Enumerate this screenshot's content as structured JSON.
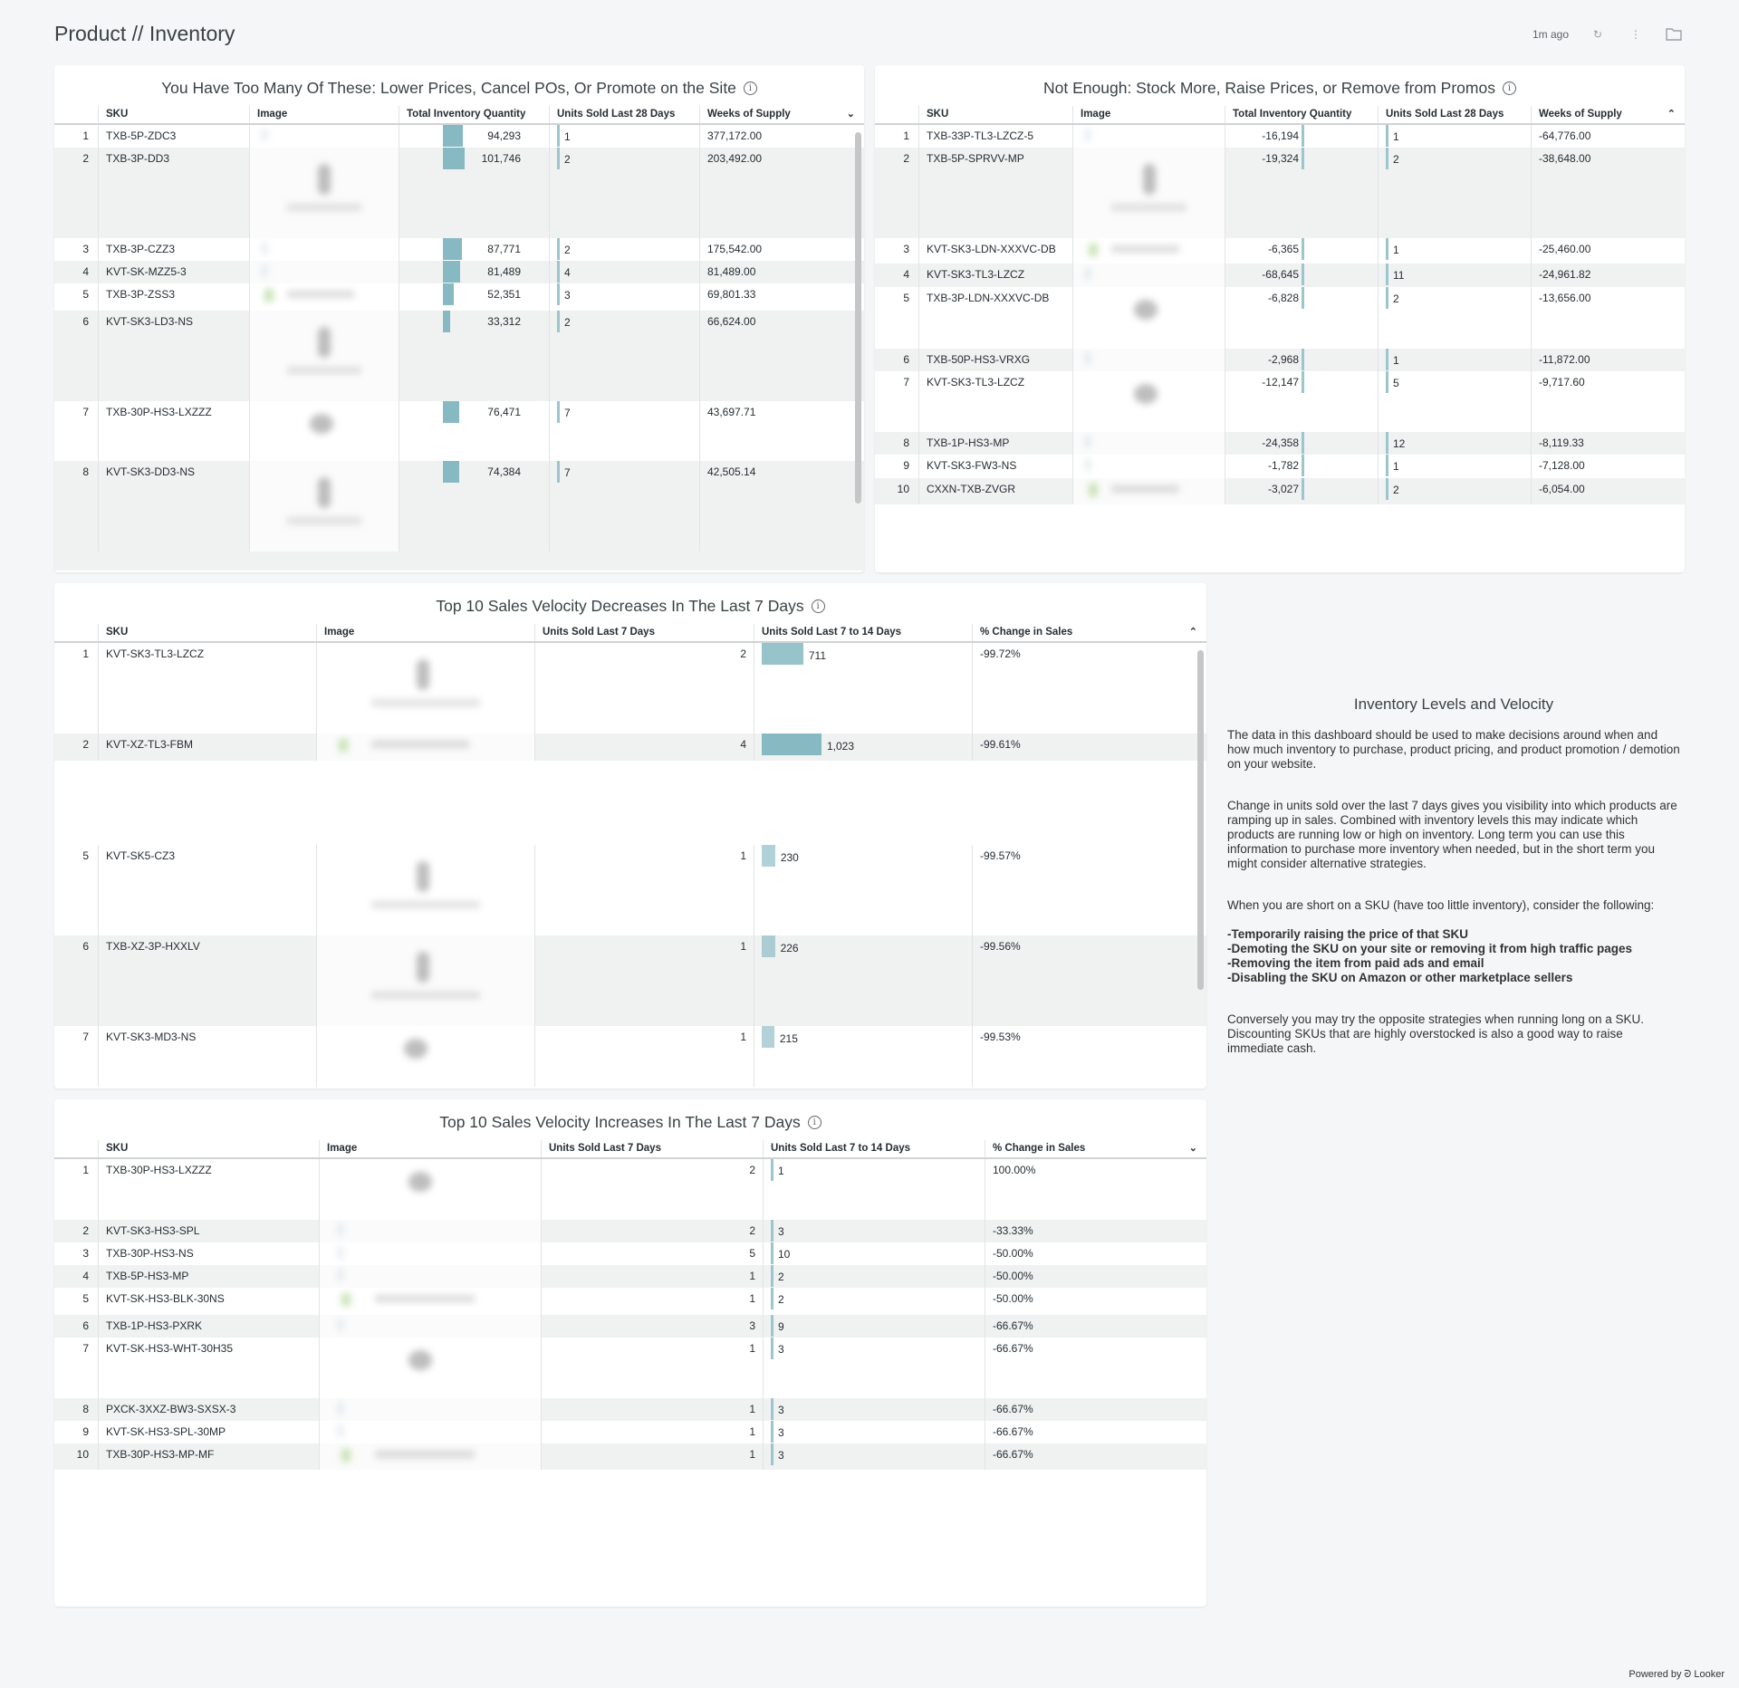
{
  "header": {
    "title": "Product // Inventory",
    "updated": "1m ago",
    "icons": [
      "refresh-icon",
      "kebab-menu-icon",
      "folder-icon"
    ]
  },
  "colors": {
    "bar": "#87b9c3",
    "stripe": "#f0f1f1"
  },
  "tables": [
    {
      "title": "You Have Too Many Of These: Lower Prices, Cancel POs, Or Promote on the Site",
      "sort": "chevron-down",
      "columns": [
        "",
        "SKU",
        "Image",
        "Total Inventory Quantity",
        "Units Sold Last 28 Days",
        "Weeks of Supply"
      ],
      "rows": [
        {
          "rank": "1",
          "sku": "TXB-5P-ZDC3",
          "img": "thumb",
          "a": "94,293",
          "b": "1",
          "c": "377,172.00"
        },
        {
          "rank": "2",
          "sku": "TXB-3P-DD3",
          "img": "figure",
          "a": "101,746",
          "b": "2",
          "c": "203,492.00"
        },
        {
          "rank": "3",
          "sku": "TXB-3P-CZZ3",
          "img": "thumb",
          "a": "87,771",
          "b": "2",
          "c": "175,542.00"
        },
        {
          "rank": "4",
          "sku": "KVT-SK-MZZ5-3",
          "img": "thumb",
          "a": "81,489",
          "b": "4",
          "c": "81,489.00"
        },
        {
          "rank": "5",
          "sku": "TXB-3P-ZSS3",
          "img": "logo",
          "a": "52,351",
          "b": "3",
          "c": "69,801.33"
        },
        {
          "rank": "6",
          "sku": "KVT-SK3-LD3-NS",
          "img": "figure",
          "a": "33,312",
          "b": "2",
          "c": "66,624.00"
        },
        {
          "rank": "7",
          "sku": "TXB-30P-HS3-LXZZZ",
          "img": "round",
          "a": "76,471",
          "b": "7",
          "c": "43,697.71"
        },
        {
          "rank": "8",
          "sku": "KVT-SK3-DD3-NS",
          "img": "figure",
          "a": "74,384",
          "b": "7",
          "c": "42,505.14"
        }
      ]
    },
    {
      "title": "Not Enough: Stock More, Raise Prices, or Remove from Promos",
      "sort": "chevron-up",
      "columns": [
        "",
        "SKU",
        "Image",
        "Total Inventory Quantity",
        "Units Sold Last 28 Days",
        "Weeks of Supply"
      ],
      "rows": [
        {
          "rank": "1",
          "sku": "TXB-33P-TL3-LZCZ-5",
          "img": "thumb",
          "a": "-16,194",
          "b": "1",
          "c": "-64,776.00"
        },
        {
          "rank": "2",
          "sku": "TXB-5P-SPRVV-MP",
          "img": "figure",
          "a": "-19,324",
          "b": "2",
          "c": "-38,648.00"
        },
        {
          "rank": "3",
          "sku": "KVT-SK3-LDN-XXXVC-DB",
          "img": "logo",
          "a": "-6,365",
          "b": "1",
          "c": "-25,460.00"
        },
        {
          "rank": "4",
          "sku": "KVT-SK3-TL3-LZCZ",
          "img": "thumb",
          "a": "-68,645",
          "b": "11",
          "c": "-24,961.82"
        },
        {
          "rank": "5",
          "sku": "TXB-3P-LDN-XXXVC-DB",
          "img": "round",
          "a": "-6,828",
          "b": "2",
          "c": "-13,656.00"
        },
        {
          "rank": "6",
          "sku": "TXB-50P-HS3-VRXG",
          "img": "thumb",
          "a": "-2,968",
          "b": "1",
          "c": "-11,872.00"
        },
        {
          "rank": "7",
          "sku": "KVT-SK3-TL3-LZCZ",
          "img": "round",
          "a": "-12,147",
          "b": "5",
          "c": "-9,717.60"
        },
        {
          "rank": "8",
          "sku": "TXB-1P-HS3-MP",
          "img": "thumb",
          "a": "-24,358",
          "b": "12",
          "c": "-8,119.33"
        },
        {
          "rank": "9",
          "sku": "KVT-SK3-FW3-NS",
          "img": "thumb",
          "a": "-1,782",
          "b": "1",
          "c": "-7,128.00"
        },
        {
          "rank": "10",
          "sku": "CXXN-TXB-ZVGR",
          "img": "logo",
          "a": "-3,027",
          "b": "2",
          "c": "-6,054.00"
        }
      ]
    },
    {
      "title": "Top 10 Sales Velocity Decreases In The Last 7 Days",
      "sort": "chevron-up",
      "columns": [
        "",
        "SKU",
        "Image",
        "Units Sold Last 7 Days",
        "Units Sold Last 7 to 14 Days",
        "% Change in Sales"
      ],
      "rows": [
        {
          "rank": "1",
          "sku": "KVT-SK3-TL3-LZCZ",
          "img": "figure",
          "a": "2",
          "b": "711",
          "c": "-99.72%"
        },
        {
          "rank": "2",
          "sku": "KVT-XZ-TL3-FBM",
          "img": "logo",
          "a": "4",
          "b": "1,023",
          "c": "-99.61%"
        },
        {
          "rank": "5",
          "sku": "KVT-SK5-CZ3",
          "img": "figure",
          "a": "1",
          "b": "230",
          "c": "-99.57%"
        },
        {
          "rank": "6",
          "sku": "TXB-XZ-3P-HXXLV",
          "img": "figure",
          "a": "1",
          "b": "226",
          "c": "-99.56%"
        },
        {
          "rank": "7",
          "sku": "KVT-SK3-MD3-NS",
          "img": "round",
          "a": "1",
          "b": "215",
          "c": "-99.53%"
        }
      ]
    },
    {
      "title": "Top 10 Sales Velocity Increases In The Last 7 Days",
      "sort": "chevron-down",
      "columns": [
        "",
        "SKU",
        "Image",
        "Units Sold Last 7 Days",
        "Units Sold Last 7 to 14 Days",
        "% Change in Sales"
      ],
      "rows": [
        {
          "rank": "1",
          "sku": "TXB-30P-HS3-LXZZZ",
          "img": "round",
          "a": "2",
          "b": "1",
          "c": "100.00%"
        },
        {
          "rank": "2",
          "sku": "KVT-SK3-HS3-SPL",
          "img": "thumb",
          "a": "2",
          "b": "3",
          "c": "-33.33%"
        },
        {
          "rank": "3",
          "sku": "TXB-30P-HS3-NS",
          "img": "thumb",
          "a": "5",
          "b": "10",
          "c": "-50.00%"
        },
        {
          "rank": "4",
          "sku": "TXB-5P-HS3-MP",
          "img": "thumb",
          "a": "1",
          "b": "2",
          "c": "-50.00%"
        },
        {
          "rank": "5",
          "sku": "KVT-SK-HS3-BLK-30NS",
          "img": "logo",
          "a": "1",
          "b": "2",
          "c": "-50.00%"
        },
        {
          "rank": "6",
          "sku": "TXB-1P-HS3-PXRK",
          "img": "thumb",
          "a": "3",
          "b": "9",
          "c": "-66.67%"
        },
        {
          "rank": "7",
          "sku": "KVT-SK-HS3-WHT-30H35",
          "img": "round",
          "a": "1",
          "b": "3",
          "c": "-66.67%"
        },
        {
          "rank": "8",
          "sku": "PXCK-3XXZ-BW3-SXSX-3",
          "img": "thumb",
          "a": "1",
          "b": "3",
          "c": "-66.67%"
        },
        {
          "rank": "9",
          "sku": "KVT-SK-HS3-SPL-30MP",
          "img": "thumb",
          "a": "1",
          "b": "3",
          "c": "-66.67%"
        },
        {
          "rank": "10",
          "sku": "TXB-30P-HS3-MP-MF",
          "img": "logo",
          "a": "1",
          "b": "3",
          "c": "-66.67%"
        }
      ]
    }
  ],
  "notes": {
    "title": "Inventory Levels and Velocity",
    "p1": "The data in this dashboard should be used to make decisions around when and how much inventory to purchase, product pricing, and product promotion / demotion on your website.",
    "p2": "Change in units sold over the last 7 days gives you visibility into which products are ramping up in sales. Combined with inventory levels this may indicate which products are running low or high on inventory. Long term you can use this information to purchase more inventory when needed, but in the short term you might consider alternative strategies.",
    "p3": "When you are short on a SKU (have too little inventory), consider the following:",
    "bullets": [
      "-Temporarily raising the price of that SKU",
      "-Demoting the SKU on your site or removing it from high traffic pages",
      "-Removing the item from paid ads and email",
      "-Disabling the SKU on Amazon or other marketplace sellers"
    ],
    "p4": "Conversely you may try the opposite strategies when running long on a SKU. Discounting SKUs that are highly overstocked is also a good way to raise immediate cash."
  },
  "footer": "Powered by ᘒ Looker"
}
